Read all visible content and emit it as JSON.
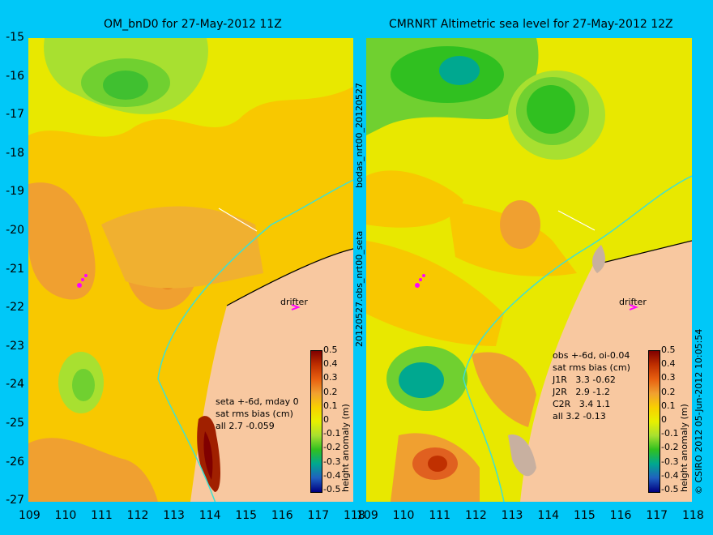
{
  "left_panel": {
    "title": "OM_bnD0 for 27-May-2012 11Z",
    "stats": "seta +-6d, mday 0\nsat rms bias (cm)\nall 2.7 -0.059",
    "drifter_label": "drifter"
  },
  "right_panel": {
    "title": "CMRNRT Altimetric sea level  for 27-May-2012 12Z",
    "stats": "obs +-6d, oi-0.04\nsat rms bias (cm)\nJ1R   3.3 -0.62\nJ2R   2.9 -1.2\nC2R   3.4 1.1\nall 3.2 -0.13",
    "drifter_label": "drifter"
  },
  "y_ticks": [
    "-15",
    "-16",
    "-17",
    "-18",
    "-19",
    "-20",
    "-21",
    "-22",
    "-23",
    "-24",
    "-25",
    "-26",
    "-27"
  ],
  "x_ticks": [
    "109",
    "110",
    "111",
    "112",
    "113",
    "114",
    "115",
    "116",
    "117",
    "118"
  ],
  "x_ticks_right": [
    "109",
    "110",
    "111",
    "112",
    "113",
    "114",
    "115",
    "116",
    "117",
    "118"
  ],
  "colorbar": {
    "title": "height anomaly (m)",
    "labels": [
      "0.5",
      "0.4",
      "0.3",
      "0.2",
      "0.1",
      "0",
      "-0.1",
      "-0.2",
      "-0.3",
      "-0.4",
      "-0.5"
    ],
    "colors": [
      "#800000",
      "#c03000",
      "#e86010",
      "#f0a030",
      "#f8d000",
      "#e8f000",
      "#a8e030",
      "#30c020",
      "#00a890",
      "#2060c0",
      "#000080"
    ]
  },
  "side_text": {
    "run_id": "bodas_nrt00_20120527",
    "obs_id": "20120527.obs_nrt00_seta",
    "credit": "© CSIRO 2012   05-Jun-2012 10:05:54"
  },
  "colors": {
    "background": "#00c8f8",
    "land": "#f8c8a0",
    "coastline_track": "#40e0d0",
    "drifter_marker": "#ff00ff"
  }
}
